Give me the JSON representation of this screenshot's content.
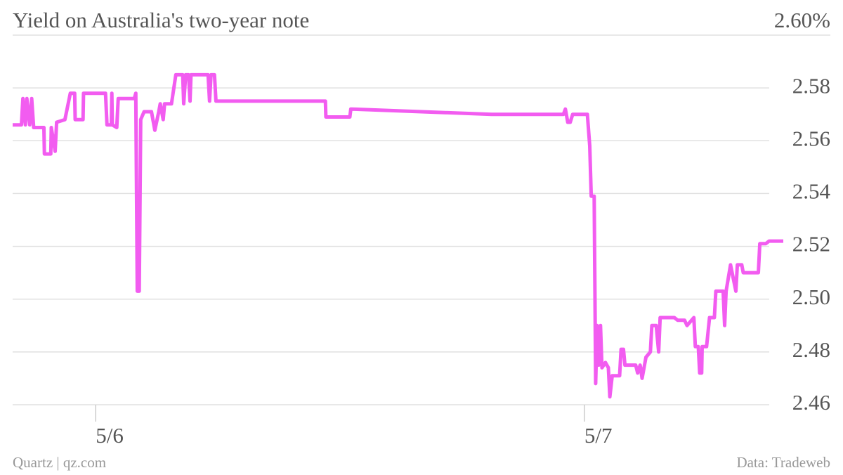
{
  "chart_data": {
    "type": "line",
    "title": "Yield on Australia's two-year note",
    "source": "Data: Tradeweb",
    "credit": "Quartz | qz.com",
    "xlim": [
      -0.17,
      1.407
    ],
    "xticks": [
      {
        "value": 0,
        "label": "5/6"
      },
      {
        "value": 1,
        "label": "5/7"
      }
    ],
    "ylim": [
      2.46,
      2.6
    ],
    "yticks": [
      2.46,
      2.48,
      {
        "value": 2.5,
        "label": "2.50"
      },
      2.52,
      2.54,
      2.56,
      2.58,
      {
        "value": 2.6,
        "label": "2.60%"
      }
    ],
    "grid": true,
    "series": [
      {
        "name": "Yield",
        "color": "#f25cf0",
        "x": [
          -0.17,
          -0.152,
          -0.149,
          -0.144,
          -0.141,
          -0.135,
          -0.131,
          -0.127,
          -0.106,
          -0.105,
          -0.092,
          -0.091,
          -0.083,
          -0.08,
          -0.063,
          -0.052,
          -0.043,
          -0.042,
          -0.026,
          -0.025,
          0.02,
          0.023,
          0.032,
          0.033,
          0.034,
          0.043,
          0.046,
          0.079,
          0.082,
          0.085,
          0.089,
          0.092,
          0.099,
          0.114,
          0.121,
          0.129,
          0.132,
          0.138,
          0.141,
          0.155,
          0.164,
          0.178,
          0.18,
          0.184,
          0.19,
          0.193,
          0.195,
          0.23,
          0.233,
          0.236,
          0.243,
          0.246,
          0.47,
          0.471,
          0.52,
          0.522,
          0.81,
          0.957,
          0.961,
          0.966,
          0.971,
          0.976,
          1.006,
          1.011,
          1.014,
          1.02,
          1.023,
          1.026,
          1.029,
          1.033,
          1.036,
          1.043,
          1.049,
          1.052,
          1.057,
          1.072,
          1.075,
          1.08,
          1.083,
          1.105,
          1.109,
          1.114,
          1.118,
          1.126,
          1.135,
          1.138,
          1.147,
          1.152,
          1.155,
          1.184,
          1.191,
          1.205,
          1.21,
          1.224,
          1.227,
          1.233,
          1.236,
          1.24,
          1.241,
          1.25,
          1.256,
          1.266,
          1.269,
          1.284,
          1.287,
          1.29,
          1.299,
          1.31,
          1.313,
          1.322,
          1.325,
          1.356,
          1.359,
          1.371,
          1.378,
          1.407
        ],
        "values": [
          2.566,
          2.566,
          2.576,
          2.566,
          2.576,
          2.566,
          2.576,
          2.565,
          2.565,
          2.555,
          2.555,
          2.565,
          2.556,
          2.567,
          2.568,
          2.578,
          2.578,
          2.568,
          2.568,
          2.578,
          2.578,
          2.566,
          2.566,
          2.578,
          2.566,
          2.565,
          2.576,
          2.576,
          2.578,
          2.503,
          2.503,
          2.568,
          2.571,
          2.571,
          2.564,
          2.571,
          2.574,
          2.568,
          2.574,
          2.574,
          2.585,
          2.585,
          2.574,
          2.585,
          2.585,
          2.575,
          2.585,
          2.585,
          2.575,
          2.585,
          2.585,
          2.575,
          2.575,
          2.569,
          2.569,
          2.572,
          2.57,
          2.57,
          2.572,
          2.567,
          2.567,
          2.57,
          2.57,
          2.558,
          2.539,
          2.539,
          2.468,
          2.49,
          2.475,
          2.49,
          2.474,
          2.476,
          2.474,
          2.463,
          2.471,
          2.471,
          2.481,
          2.481,
          2.475,
          2.475,
          2.472,
          2.475,
          2.47,
          2.478,
          2.48,
          2.49,
          2.49,
          2.48,
          2.493,
          2.493,
          2.492,
          2.492,
          2.49,
          2.493,
          2.482,
          2.482,
          2.472,
          2.472,
          2.482,
          2.482,
          2.493,
          2.493,
          2.503,
          2.503,
          2.49,
          2.503,
          2.513,
          2.503,
          2.513,
          2.513,
          2.51,
          2.51,
          2.521,
          2.521,
          2.522,
          2.522
        ]
      }
    ]
  }
}
